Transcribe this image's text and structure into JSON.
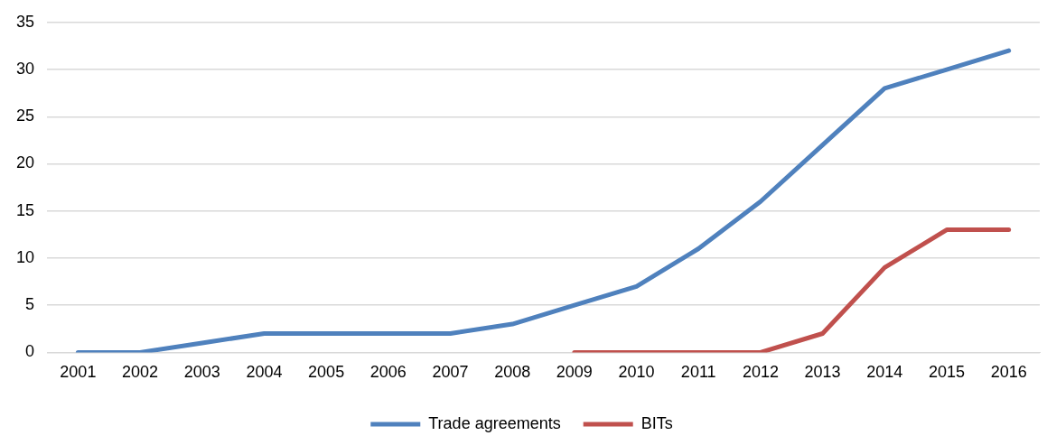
{
  "chart_data": {
    "type": "line",
    "categories": [
      "2001",
      "2002",
      "2003",
      "2004",
      "2005",
      "2006",
      "2007",
      "2008",
      "2009",
      "2010",
      "2011",
      "2012",
      "2013",
      "2014",
      "2015",
      "2016"
    ],
    "series": [
      {
        "name": "Trade agreements",
        "color": "#4f81bd",
        "values": [
          0,
          0,
          1,
          2,
          2,
          2,
          2,
          3,
          5,
          7,
          11,
          16,
          22,
          28,
          30,
          32
        ]
      },
      {
        "name": "BITs",
        "color": "#c0504d",
        "values": [
          null,
          null,
          null,
          null,
          null,
          null,
          null,
          null,
          0,
          0,
          0,
          0,
          2,
          9,
          13,
          13
        ]
      }
    ],
    "ylim": [
      0,
      35
    ],
    "yticks": [
      0,
      5,
      10,
      15,
      20,
      25,
      30,
      35
    ],
    "grid": "y",
    "legend": "bottom",
    "marker": "none",
    "line_style": "solid"
  }
}
